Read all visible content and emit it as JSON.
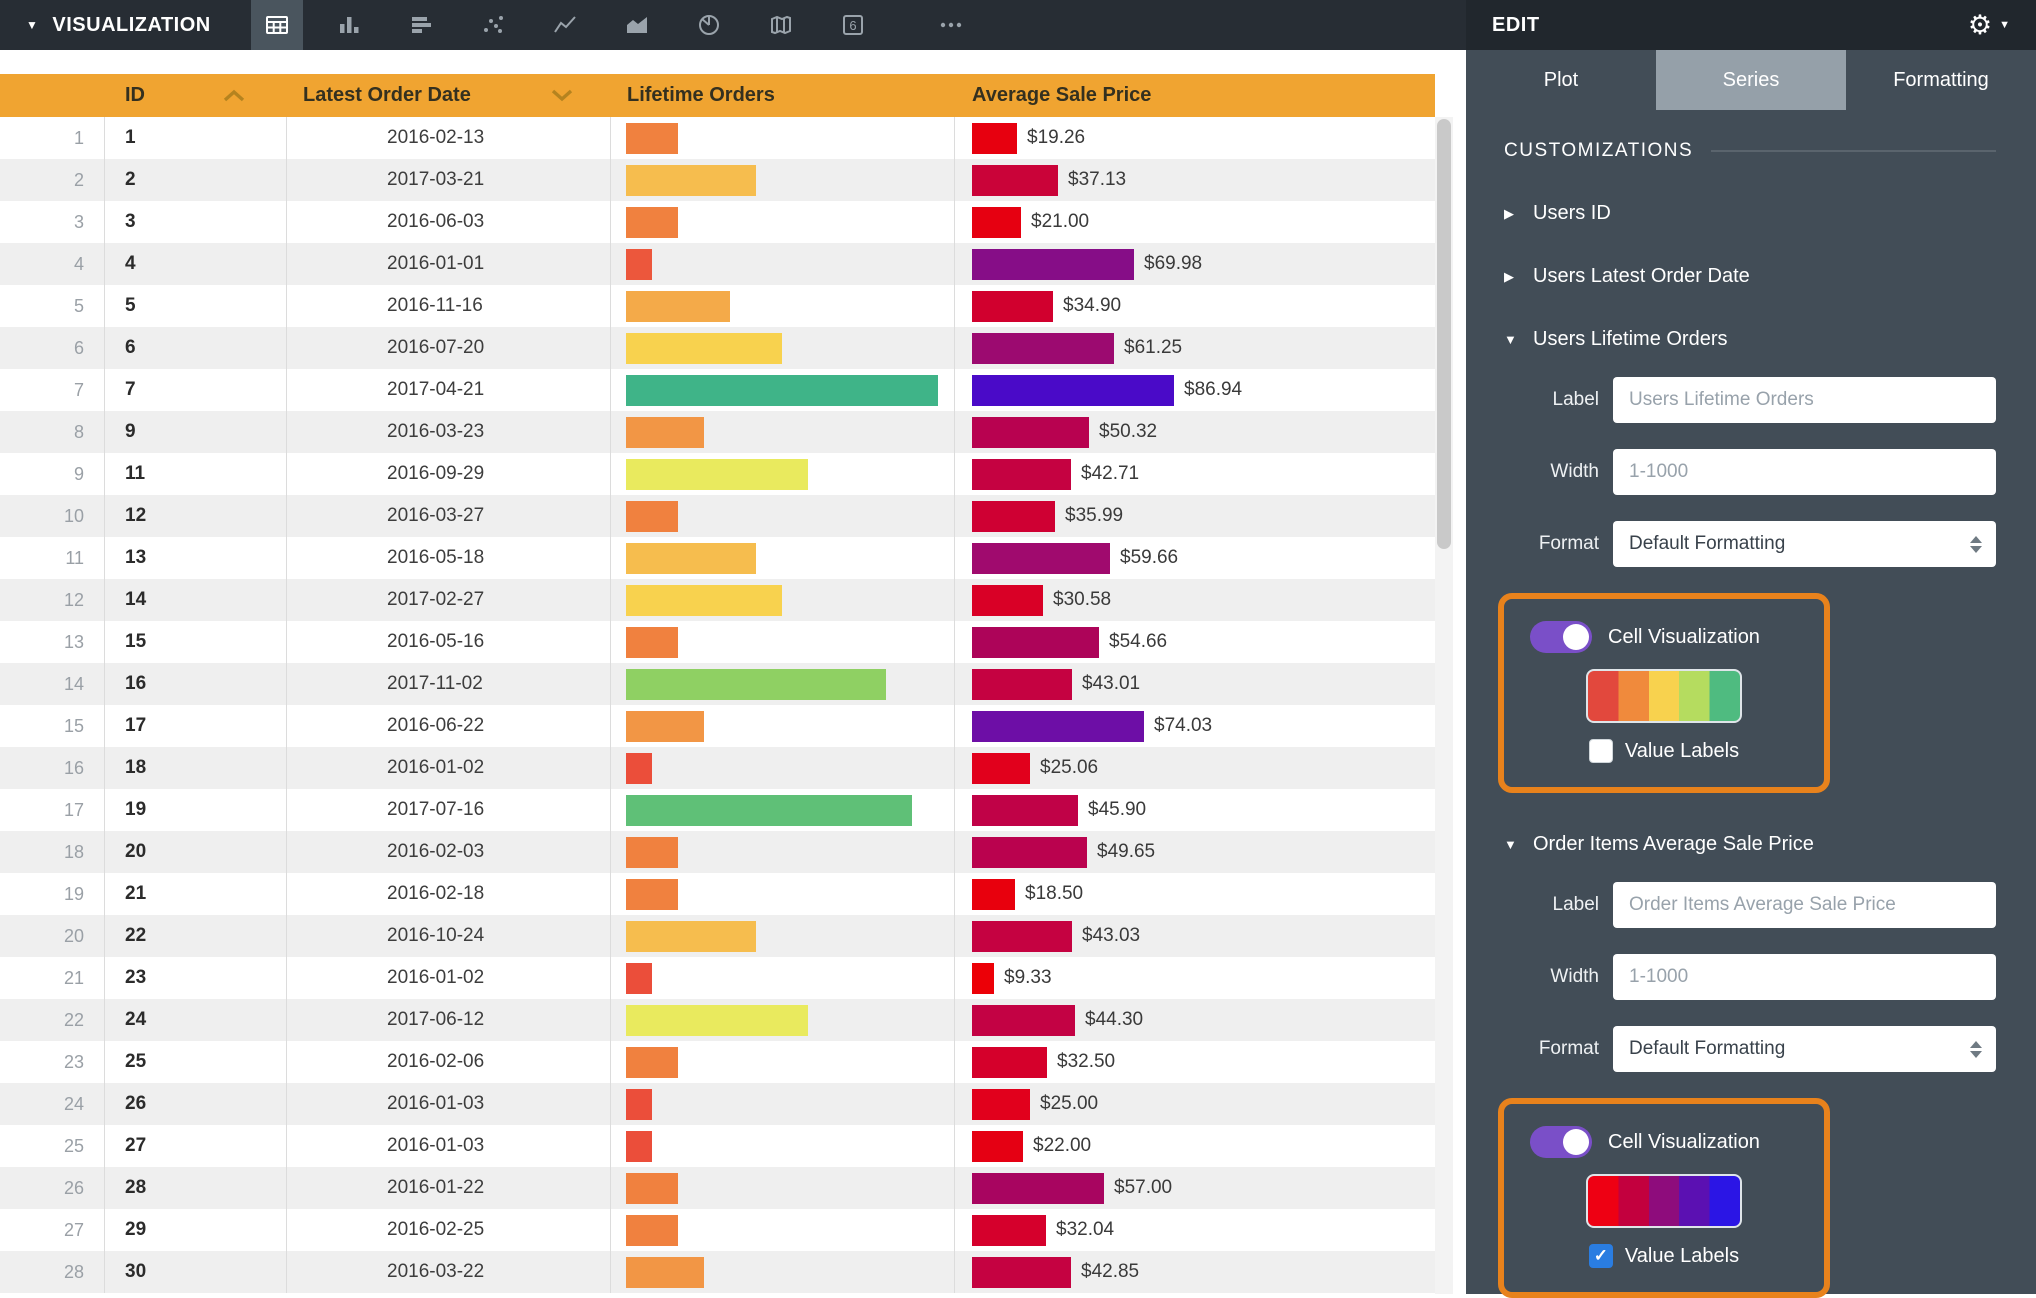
{
  "topbar": {
    "visualization_label": "VISUALIZATION",
    "icons": [
      {
        "name": "table",
        "active": true
      },
      {
        "name": "column-chart",
        "active": false
      },
      {
        "name": "bar-chart",
        "active": false
      },
      {
        "name": "scatter-plot",
        "active": false
      },
      {
        "name": "line-chart",
        "active": false
      },
      {
        "name": "area-chart",
        "active": false
      },
      {
        "name": "donut-chart",
        "active": false
      },
      {
        "name": "map",
        "active": false
      },
      {
        "name": "single-value",
        "active": false
      },
      {
        "name": "more",
        "active": false
      }
    ]
  },
  "table": {
    "columns": {
      "id": "ID",
      "date": "Latest Order Date",
      "orders": "Lifetime Orders",
      "price": "Average Sale Price"
    },
    "sort": {
      "id": "asc",
      "date": "desc"
    },
    "rows": [
      {
        "n": 1,
        "id": "1",
        "date": "2016-02-13",
        "orders": {
          "value": 2,
          "color": "#f0813f"
        },
        "price": {
          "value": 19.26,
          "label": "$19.26",
          "color": "#e7000f"
        }
      },
      {
        "n": 2,
        "id": "2",
        "date": "2017-03-21",
        "orders": {
          "value": 5,
          "color": "#f6bd4e"
        },
        "price": {
          "value": 37.13,
          "label": "$37.13",
          "color": "#ca0339"
        }
      },
      {
        "n": 3,
        "id": "3",
        "date": "2016-06-03",
        "orders": {
          "value": 2,
          "color": "#f0813f"
        },
        "price": {
          "value": 21.0,
          "label": "$21.00",
          "color": "#e60011"
        }
      },
      {
        "n": 4,
        "id": "4",
        "date": "2016-01-01",
        "orders": {
          "value": 1,
          "color": "#ec573c"
        },
        "price": {
          "value": 69.98,
          "label": "$69.98",
          "color": "#860d87"
        }
      },
      {
        "n": 5,
        "id": "5",
        "date": "2016-11-16",
        "orders": {
          "value": 4,
          "color": "#f4aa49"
        },
        "price": {
          "value": 34.9,
          "label": "$34.90",
          "color": "#d1002e"
        }
      },
      {
        "n": 6,
        "id": "6",
        "date": "2016-07-20",
        "orders": {
          "value": 6,
          "color": "#f8d24e"
        },
        "price": {
          "value": 61.25,
          "label": "$61.25",
          "color": "#9c0a70"
        }
      },
      {
        "n": 7,
        "id": "7",
        "date": "2017-04-21",
        "orders": {
          "value": 12,
          "color": "#3fb488"
        },
        "price": {
          "value": 86.94,
          "label": "$86.94",
          "color": "#4a0ac8"
        }
      },
      {
        "n": 8,
        "id": "9",
        "date": "2016-03-23",
        "orders": {
          "value": 3,
          "color": "#f29645"
        },
        "price": {
          "value": 50.32,
          "label": "$50.32",
          "color": "#b80250"
        }
      },
      {
        "n": 9,
        "id": "11",
        "date": "2016-09-29",
        "orders": {
          "value": 7,
          "color": "#e9ea5e"
        },
        "price": {
          "value": 42.71,
          "label": "$42.71",
          "color": "#c50241"
        }
      },
      {
        "n": 10,
        "id": "12",
        "date": "2016-03-27",
        "orders": {
          "value": 2,
          "color": "#f0813f"
        },
        "price": {
          "value": 35.99,
          "label": "$35.99",
          "color": "#cf0033"
        }
      },
      {
        "n": 11,
        "id": "13",
        "date": "2016-05-18",
        "orders": {
          "value": 5,
          "color": "#f6bd4e"
        },
        "price": {
          "value": 59.66,
          "label": "$59.66",
          "color": "#a00a6e"
        }
      },
      {
        "n": 12,
        "id": "14",
        "date": "2017-02-27",
        "orders": {
          "value": 6,
          "color": "#f8d24e"
        },
        "price": {
          "value": 30.58,
          "label": "$30.58",
          "color": "#d90026"
        }
      },
      {
        "n": 13,
        "id": "15",
        "date": "2016-05-16",
        "orders": {
          "value": 2,
          "color": "#f0813f"
        },
        "price": {
          "value": 54.66,
          "label": "$54.66",
          "color": "#ad0459"
        }
      },
      {
        "n": 14,
        "id": "16",
        "date": "2017-11-02",
        "orders": {
          "value": 10,
          "color": "#8fd063"
        },
        "price": {
          "value": 43.01,
          "label": "$43.01",
          "color": "#c50241"
        }
      },
      {
        "n": 15,
        "id": "17",
        "date": "2016-06-22",
        "orders": {
          "value": 3,
          "color": "#f29645"
        },
        "price": {
          "value": 74.03,
          "label": "$74.03",
          "color": "#6d0ea6"
        }
      },
      {
        "n": 16,
        "id": "18",
        "date": "2016-01-02",
        "orders": {
          "value": 1,
          "color": "#eb4e3a"
        },
        "price": {
          "value": 25.06,
          "label": "$25.06",
          "color": "#e1001c"
        }
      },
      {
        "n": 17,
        "id": "19",
        "date": "2017-07-16",
        "orders": {
          "value": 11,
          "color": "#5fc077"
        },
        "price": {
          "value": 45.9,
          "label": "$45.90",
          "color": "#c00247"
        }
      },
      {
        "n": 18,
        "id": "20",
        "date": "2016-02-03",
        "orders": {
          "value": 2,
          "color": "#f0813f"
        },
        "price": {
          "value": 49.65,
          "label": "$49.65",
          "color": "#ba024e"
        }
      },
      {
        "n": 19,
        "id": "21",
        "date": "2016-02-18",
        "orders": {
          "value": 2,
          "color": "#f0813f"
        },
        "price": {
          "value": 18.5,
          "label": "$18.50",
          "color": "#e8000d"
        }
      },
      {
        "n": 20,
        "id": "22",
        "date": "2016-10-24",
        "orders": {
          "value": 5,
          "color": "#f6bd4e"
        },
        "price": {
          "value": 43.03,
          "label": "$43.03",
          "color": "#c50241"
        }
      },
      {
        "n": 21,
        "id": "23",
        "date": "2016-01-02",
        "orders": {
          "value": 1,
          "color": "#eb4e3a"
        },
        "price": {
          "value": 9.33,
          "label": "$9.33",
          "color": "#ec0007"
        }
      },
      {
        "n": 22,
        "id": "24",
        "date": "2017-06-12",
        "orders": {
          "value": 7,
          "color": "#e9ea5e"
        },
        "price": {
          "value": 44.3,
          "label": "$44.30",
          "color": "#c30244"
        }
      },
      {
        "n": 23,
        "id": "25",
        "date": "2016-02-06",
        "orders": {
          "value": 2,
          "color": "#f0813f"
        },
        "price": {
          "value": 32.5,
          "label": "$32.50",
          "color": "#d5002b"
        }
      },
      {
        "n": 24,
        "id": "26",
        "date": "2016-01-03",
        "orders": {
          "value": 1,
          "color": "#eb4e3a"
        },
        "price": {
          "value": 25.0,
          "label": "$25.00",
          "color": "#e1001c"
        }
      },
      {
        "n": 25,
        "id": "27",
        "date": "2016-01-03",
        "orders": {
          "value": 1,
          "color": "#eb4e3a"
        },
        "price": {
          "value": 22.0,
          "label": "$22.00",
          "color": "#e50013"
        }
      },
      {
        "n": 26,
        "id": "28",
        "date": "2016-01-22",
        "orders": {
          "value": 2,
          "color": "#f0813f"
        },
        "price": {
          "value": 57.0,
          "label": "$57.00",
          "color": "#a80560"
        }
      },
      {
        "n": 27,
        "id": "29",
        "date": "2016-02-25",
        "orders": {
          "value": 2,
          "color": "#f0813f"
        },
        "price": {
          "value": 32.04,
          "label": "$32.04",
          "color": "#d5002c"
        }
      },
      {
        "n": 28,
        "id": "30",
        "date": "2016-03-22",
        "orders": {
          "value": 3,
          "color": "#f29645"
        },
        "price": {
          "value": 42.85,
          "label": "$42.85",
          "color": "#c50241"
        }
      }
    ]
  },
  "panel": {
    "edit_label": "EDIT",
    "tabs": [
      {
        "label": "Plot"
      },
      {
        "label": "Series"
      },
      {
        "label": "Formatting"
      }
    ],
    "active_tab": "Series",
    "customizations_label": "CUSTOMIZATIONS",
    "sections": [
      {
        "label": "Users ID",
        "expanded": false
      },
      {
        "label": "Users Latest Order Date",
        "expanded": false
      },
      {
        "label": "Users Lifetime Orders",
        "expanded": true,
        "fields": {
          "label_label": "Label",
          "label_value": "Users Lifetime Orders",
          "width_label": "Width",
          "width_placeholder": "1-1000",
          "format_label": "Format",
          "format_value": "Default Formatting"
        },
        "cellviz": {
          "toggle_on": true,
          "label": "Cell Visualization",
          "palette": [
            "#e2483d",
            "#f08a3c",
            "#f8d24e",
            "#b5dc5f",
            "#4fbb80"
          ],
          "value_labels_label": "Value Labels",
          "value_labels_checked": false
        }
      },
      {
        "label": "Order Items Average Sale Price",
        "expanded": true,
        "fields": {
          "label_label": "Label",
          "label_value": "Order Items Average Sale Price",
          "width_label": "Width",
          "width_placeholder": "1-1000",
          "format_label": "Format",
          "format_value": "Default Formatting"
        },
        "cellviz": {
          "toggle_on": true,
          "label": "Cell Visualization",
          "palette": [
            "#ee0013",
            "#c3003e",
            "#8e0c7c",
            "#5b10b2",
            "#2b15e5"
          ],
          "value_labels_label": "Value Labels",
          "value_labels_checked": true
        }
      }
    ],
    "accent_colors": {
      "highlight_border": "#e8821c",
      "toggle": "#7a4fc8",
      "checkbox_checked": "#2a7de1",
      "header_orange": "#f0a431"
    }
  }
}
